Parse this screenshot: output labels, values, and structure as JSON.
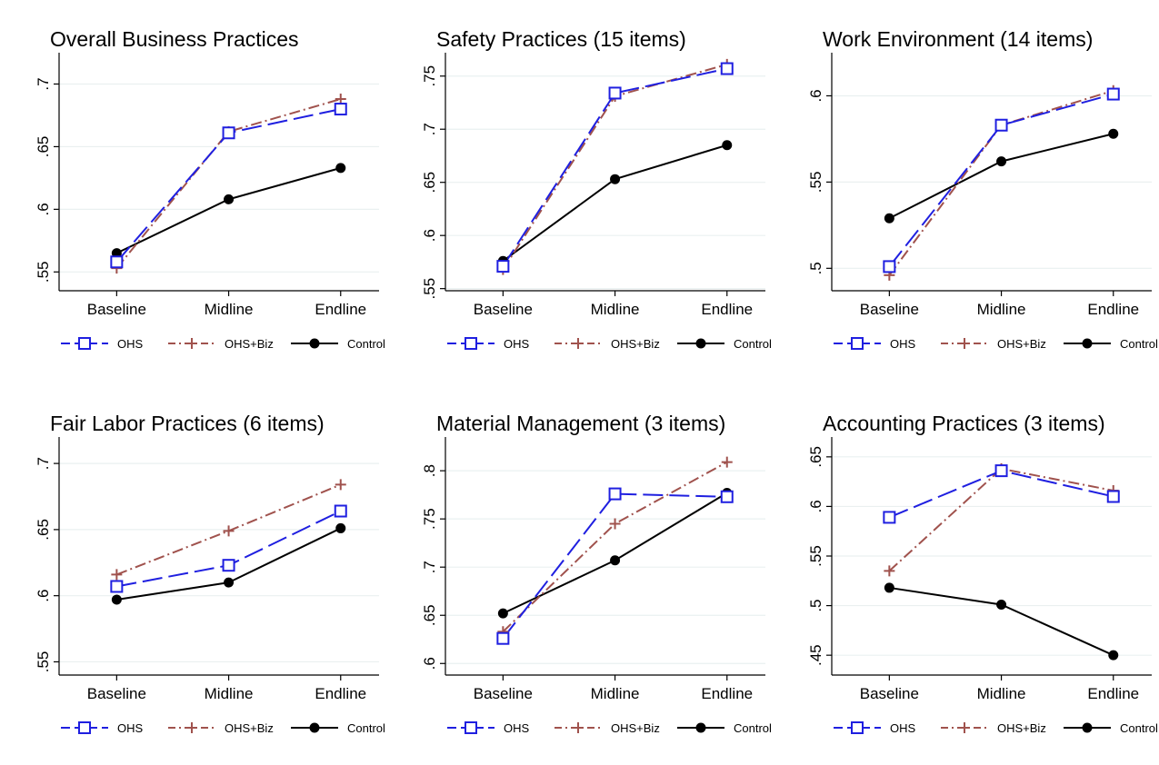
{
  "colors": {
    "OHS": "#1f1fe0",
    "OHS+Biz": "#a0524d",
    "Control": "#000000",
    "grid": "#eaf0f0"
  },
  "chart_data": [
    {
      "type": "line",
      "title": "Overall Business Practices",
      "categories": [
        "Baseline",
        "Midline",
        "Endline"
      ],
      "ylim": [
        0.535,
        0.725
      ],
      "yticks": [
        0.55,
        0.6,
        0.65,
        0.7
      ],
      "ytick_labels": [
        ".55",
        ".6",
        ".65",
        ".7"
      ],
      "grid": true,
      "legend_position": "bottom",
      "series": [
        {
          "name": "OHS",
          "values": [
            0.558,
            0.661,
            0.68
          ]
        },
        {
          "name": "OHS+Biz",
          "values": [
            0.553,
            0.662,
            0.688
          ]
        },
        {
          "name": "Control",
          "values": [
            0.565,
            0.608,
            0.633
          ]
        }
      ]
    },
    {
      "type": "line",
      "title": "Safety Practices (15 items)",
      "categories": [
        "Baseline",
        "Midline",
        "Endline"
      ],
      "ylim": [
        0.548,
        0.772
      ],
      "yticks": [
        0.55,
        0.6,
        0.65,
        0.7,
        0.75
      ],
      "ytick_labels": [
        ".55",
        ".6",
        ".65",
        ".7",
        ".75"
      ],
      "grid": true,
      "legend_position": "bottom",
      "series": [
        {
          "name": "OHS",
          "values": [
            0.571,
            0.734,
            0.757
          ]
        },
        {
          "name": "OHS+Biz",
          "values": [
            0.568,
            0.731,
            0.761
          ]
        },
        {
          "name": "Control",
          "values": [
            0.576,
            0.653,
            0.685
          ]
        }
      ]
    },
    {
      "type": "line",
      "title": "Work Environment (14 items)",
      "categories": [
        "Baseline",
        "Midline",
        "Endline"
      ],
      "ylim": [
        0.487,
        0.625
      ],
      "yticks": [
        0.5,
        0.55,
        0.6
      ],
      "ytick_labels": [
        ".5",
        ".55",
        ".6"
      ],
      "grid": true,
      "legend_position": "bottom",
      "series": [
        {
          "name": "OHS",
          "values": [
            0.501,
            0.583,
            0.601
          ]
        },
        {
          "name": "OHS+Biz",
          "values": [
            0.496,
            0.583,
            0.603
          ]
        },
        {
          "name": "Control",
          "values": [
            0.529,
            0.562,
            0.578
          ]
        }
      ]
    },
    {
      "type": "line",
      "title": "Fair Labor Practices (6 items)",
      "categories": [
        "Baseline",
        "Midline",
        "Endline"
      ],
      "ylim": [
        0.54,
        0.72
      ],
      "yticks": [
        0.55,
        0.6,
        0.65,
        0.7
      ],
      "ytick_labels": [
        ".55",
        ".6",
        ".65",
        ".7"
      ],
      "grid": true,
      "legend_position": "bottom",
      "series": [
        {
          "name": "OHS",
          "values": [
            0.607,
            0.623,
            0.664
          ]
        },
        {
          "name": "OHS+Biz",
          "values": [
            0.616,
            0.649,
            0.684
          ]
        },
        {
          "name": "Control",
          "values": [
            0.597,
            0.61,
            0.651
          ]
        }
      ]
    },
    {
      "type": "line",
      "title": "Material Management (3 items)",
      "categories": [
        "Baseline",
        "Midline",
        "Endline"
      ],
      "ylim": [
        0.588,
        0.835
      ],
      "yticks": [
        0.6,
        0.65,
        0.7,
        0.75,
        0.8
      ],
      "ytick_labels": [
        ".6",
        ".65",
        ".7",
        ".75",
        ".8"
      ],
      "grid": true,
      "legend_position": "bottom",
      "series": [
        {
          "name": "OHS",
          "values": [
            0.626,
            0.776,
            0.773
          ]
        },
        {
          "name": "OHS+Biz",
          "values": [
            0.633,
            0.745,
            0.809
          ]
        },
        {
          "name": "Control",
          "values": [
            0.652,
            0.707,
            0.777
          ]
        }
      ]
    },
    {
      "type": "line",
      "title": "Accounting Practices (3 items)",
      "categories": [
        "Baseline",
        "Midline",
        "Endline"
      ],
      "ylim": [
        0.43,
        0.67
      ],
      "yticks": [
        0.45,
        0.5,
        0.55,
        0.6,
        0.65
      ],
      "ytick_labels": [
        ".45",
        ".5",
        ".55",
        ".6",
        ".65"
      ],
      "grid": true,
      "legend_position": "bottom",
      "series": [
        {
          "name": "OHS",
          "values": [
            0.589,
            0.636,
            0.61
          ]
        },
        {
          "name": "OHS+Biz",
          "values": [
            0.535,
            0.638,
            0.616
          ]
        },
        {
          "name": "Control",
          "values": [
            0.518,
            0.501,
            0.45
          ]
        }
      ]
    }
  ]
}
